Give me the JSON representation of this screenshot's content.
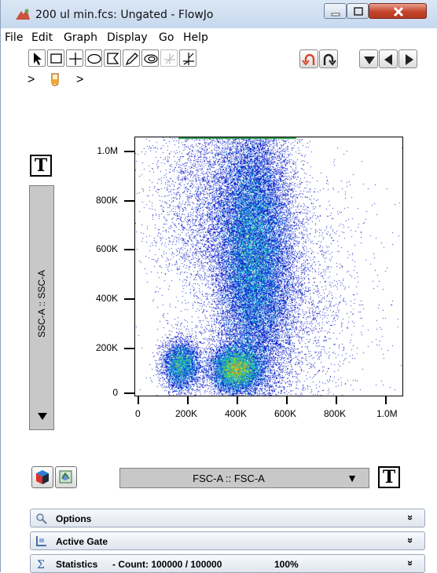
{
  "window": {
    "title": "200 ul min.fcs: Ungated - FlowJo",
    "buttons": {
      "minimize": "–",
      "maximize": "□",
      "close": "X"
    }
  },
  "menu": [
    "File",
    "Edit",
    "Graph",
    "Display",
    "Go",
    "Help"
  ],
  "toolbar": {
    "tools": [
      "pointer-tool",
      "rectangle-gate-tool",
      "quadrant-gate-tool",
      "ellipse-gate-tool",
      "polygon-gate-tool",
      "freehand-gate-tool",
      "bifurcated-gate-tool",
      "spider-gate-tool",
      "spider-plot-tool"
    ],
    "right": [
      "undo",
      "redo",
      "previous-sample",
      "back",
      "forward"
    ]
  },
  "breadcrumb": {
    "sep": ">"
  },
  "plot": {
    "y_axis_param": "SSC-A :: SSC-A",
    "x_axis_param": "FSC-A :: FSC-A",
    "y_ticks": [
      "0",
      "200K",
      "400K",
      "600K",
      "800K",
      "1.0M"
    ],
    "x_ticks": [
      "0",
      "200K",
      "400K",
      "600K",
      "800K",
      "1.0M"
    ],
    "text_button": "T"
  },
  "panels": {
    "options": "Options",
    "active_gate": "Active Gate",
    "statistics": "Statistics",
    "stats_count": "-  Count: 100000 / 100000",
    "stats_percent": "100%"
  },
  "colors": {
    "accent_close": "#c5442b",
    "panel_bg": "#c8c8c8"
  }
}
